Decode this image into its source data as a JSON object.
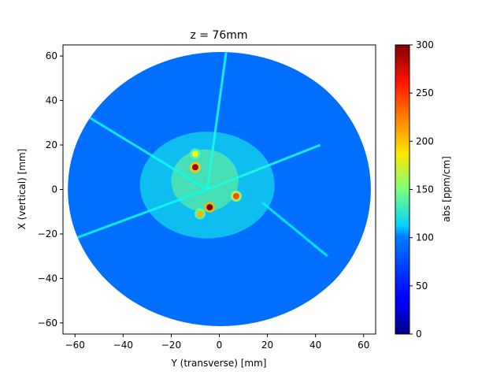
{
  "chart_data": {
    "type": "heatmap",
    "title": "z = 76mm",
    "xlabel": "Y (transverse) [mm]",
    "ylabel": "X (vertical) [mm]",
    "xlim": [
      -65,
      65
    ],
    "ylim": [
      -65,
      65
    ],
    "xticks": [
      -60,
      -40,
      -20,
      0,
      20,
      40,
      60
    ],
    "yticks": [
      -60,
      -40,
      -20,
      0,
      20,
      40,
      60
    ],
    "colorbar": {
      "label": "abs [ppm/cm]",
      "range": [
        0,
        300
      ],
      "ticks": [
        0,
        50,
        100,
        150,
        200,
        250,
        300
      ],
      "colormap": "jet"
    },
    "region": {
      "shape": "disk",
      "center": [
        0,
        0
      ],
      "radius": 63
    },
    "background_level": 70,
    "hot_spots": [
      {
        "y": -4,
        "x": -8,
        "value": 300
      },
      {
        "y": -10,
        "x": 10,
        "value": 290
      },
      {
        "y": 7,
        "x": -3,
        "value": 240
      },
      {
        "y": -10,
        "x": 16,
        "value": 190
      },
      {
        "y": -8,
        "x": -11,
        "value": 210
      }
    ],
    "ridge_lines": [
      {
        "from": [
          -5,
          0
        ],
        "to": [
          3,
          63
        ],
        "value": 120
      },
      {
        "from": [
          -5,
          0
        ],
        "to": [
          -55,
          33
        ],
        "value": 115
      },
      {
        "from": [
          -5,
          0
        ],
        "to": [
          -60,
          -22
        ],
        "value": 115
      },
      {
        "from": [
          -5,
          0
        ],
        "to": [
          42,
          20
        ],
        "value": 120
      },
      {
        "from": [
          18,
          -6
        ],
        "to": [
          45,
          -30
        ],
        "value": 110
      }
    ]
  }
}
